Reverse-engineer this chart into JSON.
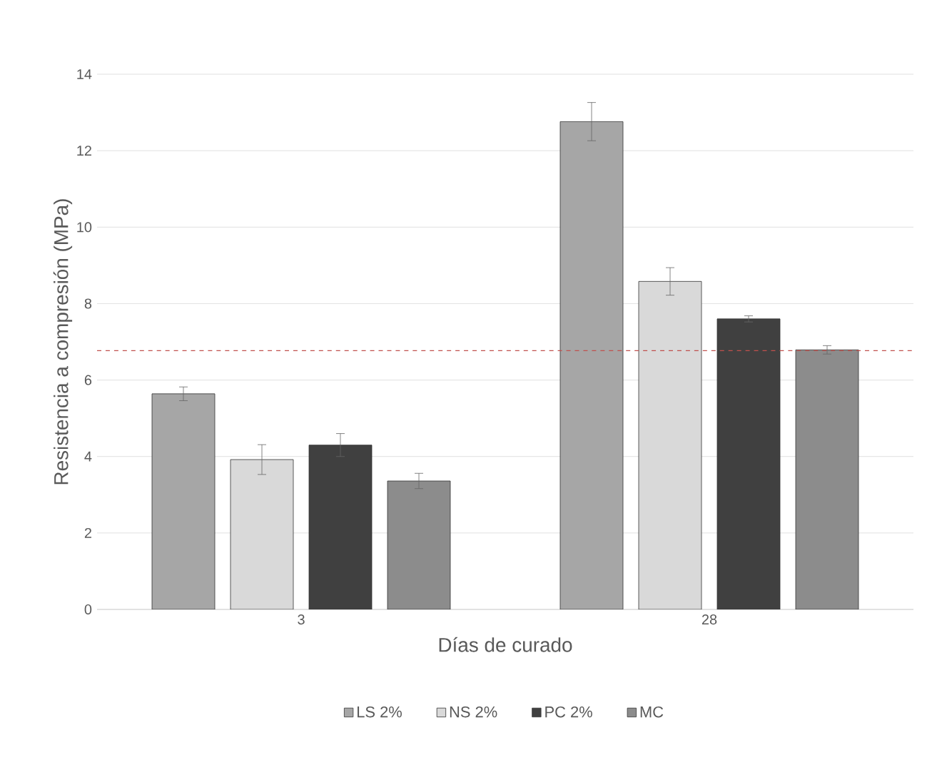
{
  "chart_data": {
    "type": "bar",
    "xlabel": "Días de curado",
    "ylabel": "Resistencia a compresión (MPa)",
    "categories": [
      "3",
      "28"
    ],
    "series": [
      {
        "name": "LS 2%",
        "color": "#a6a6a6",
        "values": [
          5.64,
          12.76
        ],
        "errors": [
          0.18,
          0.5
        ]
      },
      {
        "name": "NS 2%",
        "color": "#d9d9d9",
        "values": [
          3.92,
          8.58
        ],
        "errors": [
          0.39,
          0.36
        ]
      },
      {
        "name": "PC 2%",
        "color": "#404040",
        "values": [
          4.3,
          7.6
        ],
        "errors": [
          0.3,
          0.08
        ]
      },
      {
        "name": "MC",
        "color": "#8c8c8c",
        "values": [
          3.36,
          6.79
        ],
        "errors": [
          0.2,
          0.11
        ]
      }
    ],
    "ylim": [
      0,
      14
    ],
    "yticks": [
      0,
      2,
      4,
      6,
      8,
      10,
      12,
      14
    ],
    "grid": "y",
    "legend": "bottom",
    "ref_lines": [
      {
        "axis": "y",
        "value": 6.77,
        "color": "#c0504d",
        "line_style": "dashed"
      }
    ]
  }
}
